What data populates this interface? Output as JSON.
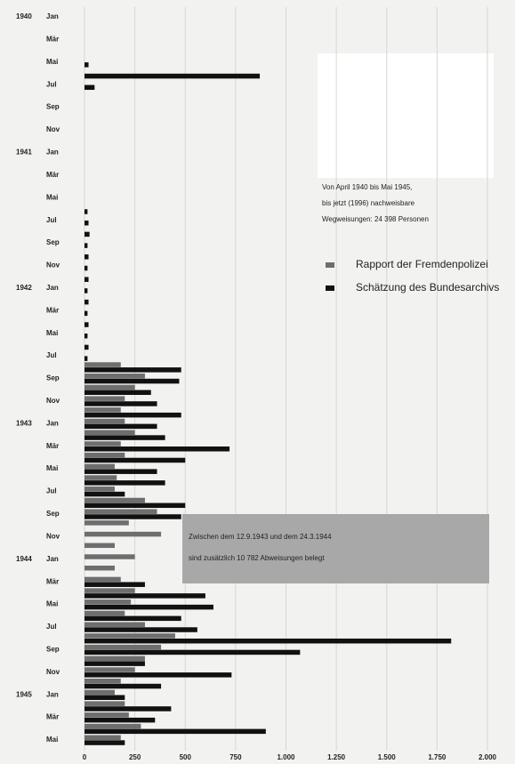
{
  "chart_data": {
    "type": "bar",
    "orientation": "horizontal",
    "categories": [
      "Jan",
      null,
      "Mär",
      null,
      "Mai",
      null,
      "Jul",
      null,
      "Sep",
      null,
      "Nov",
      null,
      "Jan",
      null,
      "Mär",
      null,
      "Mai",
      null,
      "Jul",
      null,
      "Sep",
      null,
      "Nov",
      null,
      "Jan",
      null,
      "Mär",
      null,
      "Mai",
      null,
      "Jul",
      null,
      "Sep",
      null,
      "Nov",
      null,
      "Jan",
      null,
      "Mär",
      null,
      "Mai",
      null,
      "Jul",
      null,
      "Sep",
      null,
      "Nov",
      null,
      "Jan",
      null,
      "Mär",
      null,
      "Mai",
      null,
      "Jul",
      null,
      "Sep",
      null,
      "Nov",
      null,
      "Jan",
      null,
      "Mär",
      null,
      "Mai"
    ],
    "years": [
      "1940",
      "1941",
      "1942",
      "1943",
      "1944",
      "1945"
    ],
    "series": [
      {
        "name": "Rapport der Fremdenpolizei",
        "color": "#6e6e6e",
        "values": [
          null,
          null,
          null,
          null,
          null,
          null,
          null,
          null,
          null,
          null,
          null,
          null,
          null,
          null,
          null,
          null,
          null,
          null,
          null,
          null,
          null,
          null,
          null,
          null,
          null,
          null,
          null,
          null,
          null,
          null,
          null,
          180,
          300,
          250,
          200,
          180,
          200,
          250,
          180,
          200,
          150,
          160,
          150,
          300,
          360,
          220,
          380,
          150,
          250,
          150,
          180,
          250,
          230,
          200,
          300,
          450,
          380,
          300,
          250,
          180,
          150,
          200,
          220,
          280,
          180
        ]
      },
      {
        "name": "Schätzung des Bundesarchivs",
        "color": "#111111",
        "values": [
          null,
          null,
          null,
          null,
          20,
          870,
          50,
          null,
          null,
          null,
          null,
          null,
          null,
          null,
          null,
          null,
          null,
          15,
          20,
          25,
          15,
          20,
          15,
          20,
          15,
          20,
          15,
          20,
          15,
          20,
          15,
          480,
          470,
          330,
          360,
          480,
          360,
          400,
          720,
          500,
          360,
          400,
          200,
          500,
          480,
          null,
          null,
          null,
          null,
          null,
          300,
          600,
          640,
          480,
          560,
          1820,
          1070,
          300,
          730,
          380,
          200,
          430,
          350,
          900,
          200
        ]
      }
    ],
    "xlim": [
      0,
      2000
    ],
    "xticks": [
      0,
      250,
      500,
      750,
      {
        "value": 1000,
        "label": "1.000"
      },
      {
        "value": 1250,
        "label": "1.250"
      },
      {
        "value": 1500,
        "label": "1.500"
      },
      {
        "value": 1750,
        "label": "1.750"
      },
      {
        "value": 2000,
        "label": "2.000"
      }
    ],
    "grid": true,
    "annotations": [
      {
        "lines": [
          "Von April 1940 bis Mai 1945,",
          "bis jetzt (1996) nachweisbare",
          "Wegweisungen: 24 398 Personen"
        ]
      },
      {
        "lines": [
          "Zwischen dem 12.9.1943 und dem 24.3.1944",
          "sind zusätzlich 10 782 Abweisungen belegt"
        ]
      }
    ]
  }
}
